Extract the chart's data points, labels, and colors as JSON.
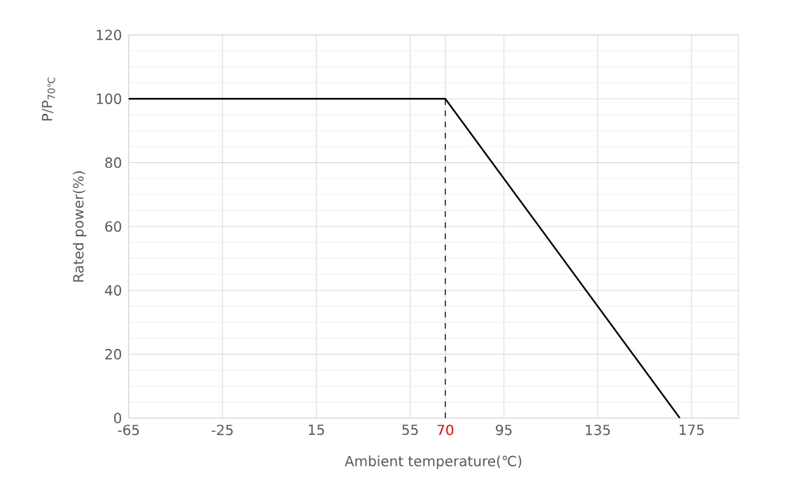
{
  "chart_data": {
    "type": "line",
    "xlabel": "Ambient temperature(℃)",
    "ylabel": "Rated power(%)",
    "annotations": [
      "P/P$_{70℃}$"
    ],
    "x": [
      -65,
      70,
      170
    ],
    "series": [
      {
        "color": "#000000",
        "values": [
          100,
          100,
          0
        ]
      }
    ],
    "xlim": [
      -65,
      195
    ],
    "xticks": [
      -65,
      -25,
      15,
      55,
      70,
      95,
      135,
      175
    ],
    "ylim": [
      0,
      120
    ],
    "yticks": [
      0,
      20,
      40,
      60,
      80,
      100,
      120
    ],
    "ref_lines": [
      {
        "axis": "x",
        "value": 70,
        "color": "#000000",
        "line_style": "dashed"
      }
    ],
    "grid": true,
    "marker": "none",
    "line_style": "solid"
  }
}
